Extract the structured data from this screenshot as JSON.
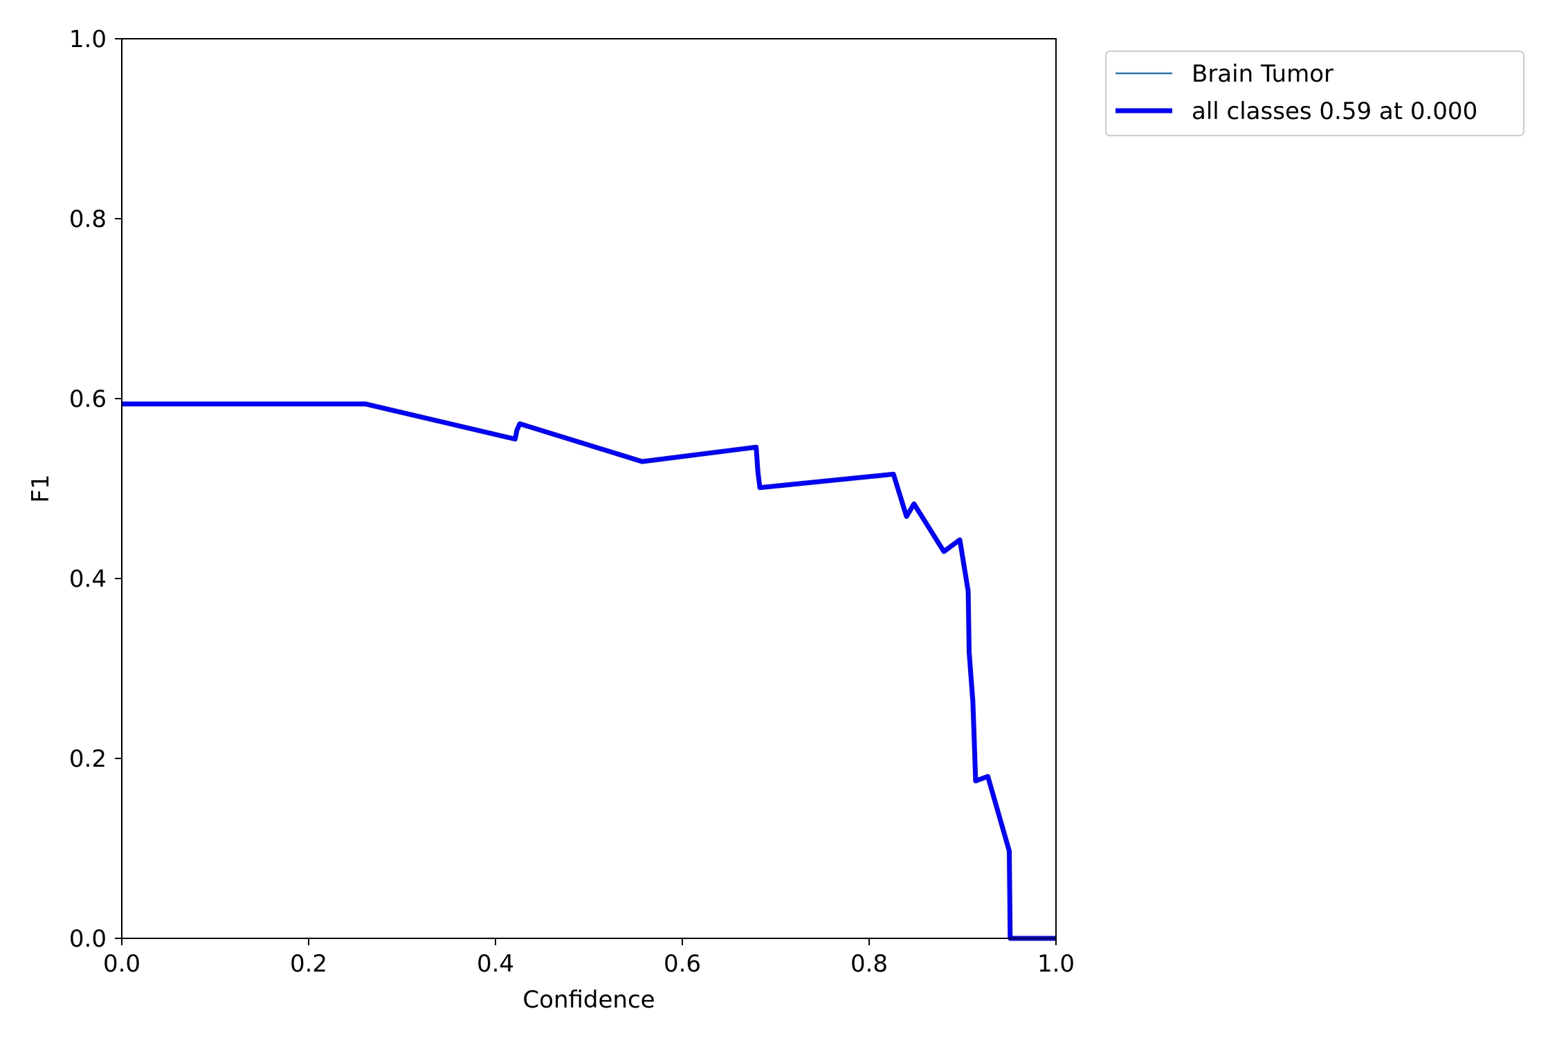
{
  "chart_data": {
    "type": "line",
    "xlabel": "Confidence",
    "ylabel": "F1",
    "xlim": [
      0,
      1
    ],
    "ylim": [
      0,
      1
    ],
    "x_ticks": [
      "0.0",
      "0.2",
      "0.4",
      "0.6",
      "0.8",
      "1.0"
    ],
    "y_ticks": [
      "0.0",
      "0.2",
      "0.4",
      "0.6",
      "0.8",
      "1.0"
    ],
    "grid": false,
    "legend_position": "outside-top-right",
    "series": [
      {
        "name": "Brain Tumor",
        "color": "#1f77b4",
        "line_width": "thin",
        "x": [
          0.0,
          0.261,
          0.421,
          0.423,
          0.426,
          0.557,
          0.679,
          0.681,
          0.683,
          0.826,
          0.84,
          0.848,
          0.88,
          0.897,
          0.906,
          0.907,
          0.911,
          0.914,
          0.927,
          0.95,
          0.951,
          1.0
        ],
        "y": [
          0.594,
          0.594,
          0.555,
          0.565,
          0.572,
          0.53,
          0.546,
          0.518,
          0.501,
          0.516,
          0.469,
          0.483,
          0.43,
          0.443,
          0.386,
          0.318,
          0.263,
          0.175,
          0.18,
          0.097,
          0.0,
          0.0
        ]
      },
      {
        "name": "all classes 0.59 at 0.000",
        "color": "#0000ff",
        "line_width": "thick",
        "x": [
          0.0,
          0.261,
          0.421,
          0.423,
          0.426,
          0.557,
          0.679,
          0.681,
          0.683,
          0.826,
          0.84,
          0.848,
          0.88,
          0.897,
          0.906,
          0.907,
          0.911,
          0.914,
          0.927,
          0.95,
          0.951,
          1.0
        ],
        "y": [
          0.594,
          0.594,
          0.555,
          0.565,
          0.572,
          0.53,
          0.546,
          0.518,
          0.501,
          0.516,
          0.469,
          0.483,
          0.43,
          0.443,
          0.386,
          0.318,
          0.263,
          0.175,
          0.18,
          0.097,
          0.0,
          0.0
        ]
      }
    ]
  }
}
